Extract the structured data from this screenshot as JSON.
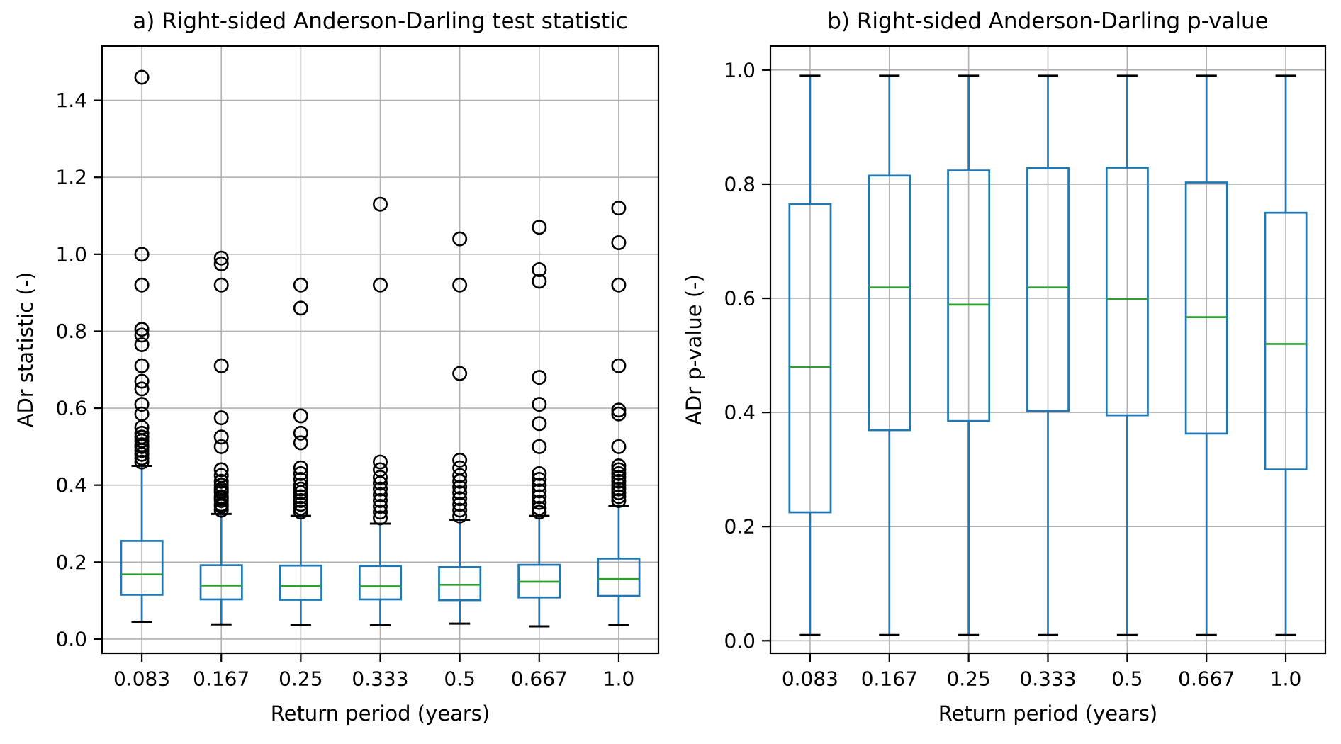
{
  "colors": {
    "box": "#1f77b4",
    "whisker": "#1f77b4",
    "median": "#2ca02c",
    "cap": "#000000",
    "outlier": "#000000",
    "grid": "#b0b0b0",
    "spine": "#000000",
    "text": "#000000",
    "background": "#ffffff"
  },
  "chart_data": [
    {
      "id": "ad-statistic",
      "type": "boxplot",
      "title": "a) Right-sided Anderson-Darling test statistic",
      "xlabel": "Return period (years)",
      "ylabel": "ADr statistic (-)",
      "categories": [
        "0.083",
        "0.167",
        "0.25",
        "0.333",
        "0.5",
        "0.667",
        "1.0"
      ],
      "ytick_values": [
        0.0,
        0.2,
        0.4,
        0.6,
        0.8,
        1.0,
        1.2,
        1.4
      ],
      "ytick_labels": [
        "0.0",
        "0.2",
        "0.4",
        "0.6",
        "0.8",
        "1.0",
        "1.2",
        "1.4"
      ],
      "ylim": [
        -0.037,
        1.541
      ],
      "grid": true,
      "legend": "none",
      "boxes": [
        {
          "whislo": 0.045,
          "q1": 0.115,
          "med": 0.168,
          "q3": 0.255,
          "whishi": 0.45,
          "fliers": [
            1.46,
            1.0,
            0.92,
            0.805,
            0.79,
            0.765,
            0.71,
            0.67,
            0.65,
            0.61,
            0.585,
            0.55,
            0.535,
            0.525,
            0.515,
            0.505,
            0.5,
            0.49,
            0.48,
            0.47,
            0.46
          ]
        },
        {
          "whislo": 0.038,
          "q1": 0.103,
          "med": 0.139,
          "q3": 0.192,
          "whishi": 0.325,
          "fliers": [
            0.99,
            0.975,
            0.92,
            0.71,
            0.575,
            0.525,
            0.5,
            0.44,
            0.425,
            0.41,
            0.4,
            0.39,
            0.385,
            0.38,
            0.37,
            0.365,
            0.36,
            0.35,
            0.345,
            0.335
          ]
        },
        {
          "whislo": 0.037,
          "q1": 0.102,
          "med": 0.138,
          "q3": 0.191,
          "whishi": 0.32,
          "fliers": [
            0.92,
            0.86,
            0.58,
            0.535,
            0.51,
            0.445,
            0.43,
            0.415,
            0.4,
            0.39,
            0.38,
            0.37,
            0.36,
            0.35,
            0.34,
            0.33
          ]
        },
        {
          "whislo": 0.036,
          "q1": 0.103,
          "med": 0.137,
          "q3": 0.19,
          "whishi": 0.3,
          "fliers": [
            1.13,
            0.92,
            0.46,
            0.44,
            0.42,
            0.405,
            0.39,
            0.375,
            0.36,
            0.345,
            0.33,
            0.315
          ]
        },
        {
          "whislo": 0.04,
          "q1": 0.101,
          "med": 0.141,
          "q3": 0.187,
          "whishi": 0.31,
          "fliers": [
            1.04,
            0.92,
            0.69,
            0.465,
            0.445,
            0.425,
            0.41,
            0.395,
            0.38,
            0.365,
            0.35,
            0.335,
            0.32
          ]
        },
        {
          "whislo": 0.033,
          "q1": 0.108,
          "med": 0.149,
          "q3": 0.193,
          "whishi": 0.32,
          "fliers": [
            1.07,
            0.96,
            0.93,
            0.68,
            0.61,
            0.56,
            0.5,
            0.43,
            0.415,
            0.4,
            0.385,
            0.37,
            0.355,
            0.34,
            0.33
          ]
        },
        {
          "whislo": 0.037,
          "q1": 0.112,
          "med": 0.156,
          "q3": 0.209,
          "whishi": 0.347,
          "fliers": [
            1.12,
            1.03,
            0.92,
            0.71,
            0.595,
            0.585,
            0.5,
            0.45,
            0.44,
            0.43,
            0.42,
            0.41,
            0.4,
            0.39,
            0.38,
            0.37,
            0.36
          ]
        }
      ]
    },
    {
      "id": "ad-pvalue",
      "type": "boxplot",
      "title": "b) Right-sided Anderson-Darling p-value",
      "xlabel": "Return period (years)",
      "ylabel": "ADr p-value (-)",
      "categories": [
        "0.083",
        "0.167",
        "0.25",
        "0.333",
        "0.5",
        "0.667",
        "1.0"
      ],
      "ytick_values": [
        0.0,
        0.2,
        0.4,
        0.6,
        0.8,
        1.0
      ],
      "ytick_labels": [
        "0.0",
        "0.2",
        "0.4",
        "0.6",
        "0.8",
        "1.0"
      ],
      "ylim": [
        -0.022,
        1.042
      ],
      "grid": true,
      "legend": "none",
      "boxes": [
        {
          "whislo": 0.01,
          "q1": 0.225,
          "med": 0.48,
          "q3": 0.765,
          "whishi": 0.99,
          "fliers": []
        },
        {
          "whislo": 0.01,
          "q1": 0.369,
          "med": 0.619,
          "q3": 0.815,
          "whishi": 0.99,
          "fliers": []
        },
        {
          "whislo": 0.01,
          "q1": 0.385,
          "med": 0.589,
          "q3": 0.824,
          "whishi": 0.99,
          "fliers": []
        },
        {
          "whislo": 0.01,
          "q1": 0.403,
          "med": 0.619,
          "q3": 0.828,
          "whishi": 0.99,
          "fliers": []
        },
        {
          "whislo": 0.01,
          "q1": 0.395,
          "med": 0.599,
          "q3": 0.829,
          "whishi": 0.99,
          "fliers": []
        },
        {
          "whislo": 0.01,
          "q1": 0.363,
          "med": 0.567,
          "q3": 0.803,
          "whishi": 0.99,
          "fliers": []
        },
        {
          "whislo": 0.01,
          "q1": 0.3,
          "med": 0.52,
          "q3": 0.75,
          "whishi": 0.99,
          "fliers": []
        }
      ]
    }
  ]
}
